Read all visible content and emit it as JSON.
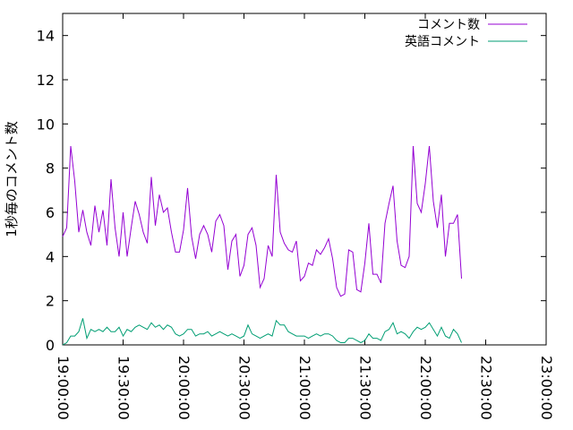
{
  "chart_data": {
    "type": "line",
    "ylabel": "1秒毎のコメント数",
    "xlabel": "",
    "title": "",
    "legend_position": "top-right",
    "grid": false,
    "x_range": [
      "19:00:00",
      "23:00:00"
    ],
    "ylim": [
      0,
      15
    ],
    "x_ticks": [
      "19:00:00",
      "19:30:00",
      "20:00:00",
      "20:30:00",
      "21:00:00",
      "21:30:00",
      "22:00:00",
      "22:30:00",
      "23:00:00"
    ],
    "y_ticks": [
      "0",
      "2",
      "4",
      "6",
      "8",
      "10",
      "12",
      "14"
    ],
    "x_start": "19:00:00",
    "x_interval": "00:02:00",
    "series": [
      {
        "name": "コメント数",
        "color": "#9400d3",
        "values": [
          4.9,
          5.3,
          9.0,
          7.4,
          5.1,
          6.1,
          5.1,
          4.5,
          6.3,
          5.1,
          6.1,
          4.5,
          7.5,
          5.3,
          4.0,
          6.0,
          4.0,
          5.3,
          6.5,
          5.9,
          5.1,
          4.6,
          7.6,
          5.4,
          6.8,
          6.0,
          6.2,
          5.1,
          4.2,
          4.2,
          5.2,
          7.1,
          4.9,
          3.9,
          5.0,
          5.4,
          5.0,
          4.2,
          5.6,
          5.9,
          5.4,
          3.4,
          4.7,
          5.0,
          3.1,
          3.6,
          5.0,
          5.3,
          4.5,
          2.6,
          3.0,
          4.5,
          4.0,
          7.7,
          5.1,
          4.6,
          4.3,
          4.2,
          4.7,
          2.9,
          3.1,
          3.7,
          3.6,
          4.3,
          4.1,
          4.4,
          4.8,
          3.9,
          2.6,
          2.2,
          2.3,
          4.3,
          4.2,
          2.5,
          2.4,
          3.7,
          5.5,
          3.2,
          3.2,
          2.8,
          5.5,
          6.4,
          7.2,
          4.7,
          3.6,
          3.5,
          4.0,
          9.0,
          6.4,
          6.0,
          7.3,
          9.0,
          6.5,
          5.3,
          6.8,
          4.0,
          5.5,
          5.5,
          5.9,
          3.0
        ]
      },
      {
        "name": "英語コメント",
        "color": "#009e73",
        "values": [
          0.0,
          0.1,
          0.4,
          0.4,
          0.6,
          1.2,
          0.3,
          0.7,
          0.6,
          0.7,
          0.6,
          0.8,
          0.6,
          0.6,
          0.8,
          0.4,
          0.7,
          0.6,
          0.8,
          0.9,
          0.8,
          0.7,
          1.0,
          0.8,
          0.9,
          0.7,
          0.9,
          0.8,
          0.5,
          0.4,
          0.5,
          0.7,
          0.7,
          0.4,
          0.5,
          0.5,
          0.6,
          0.4,
          0.5,
          0.6,
          0.5,
          0.4,
          0.5,
          0.4,
          0.3,
          0.4,
          0.9,
          0.5,
          0.4,
          0.3,
          0.4,
          0.5,
          0.4,
          1.1,
          0.9,
          0.9,
          0.6,
          0.5,
          0.4,
          0.4,
          0.4,
          0.3,
          0.4,
          0.5,
          0.4,
          0.5,
          0.5,
          0.4,
          0.2,
          0.1,
          0.1,
          0.3,
          0.3,
          0.2,
          0.1,
          0.2,
          0.5,
          0.3,
          0.3,
          0.2,
          0.6,
          0.7,
          1.0,
          0.5,
          0.6,
          0.5,
          0.3,
          0.6,
          0.8,
          0.7,
          0.8,
          1.0,
          0.7,
          0.4,
          0.8,
          0.4,
          0.3,
          0.7,
          0.5,
          0.1
        ]
      }
    ]
  }
}
